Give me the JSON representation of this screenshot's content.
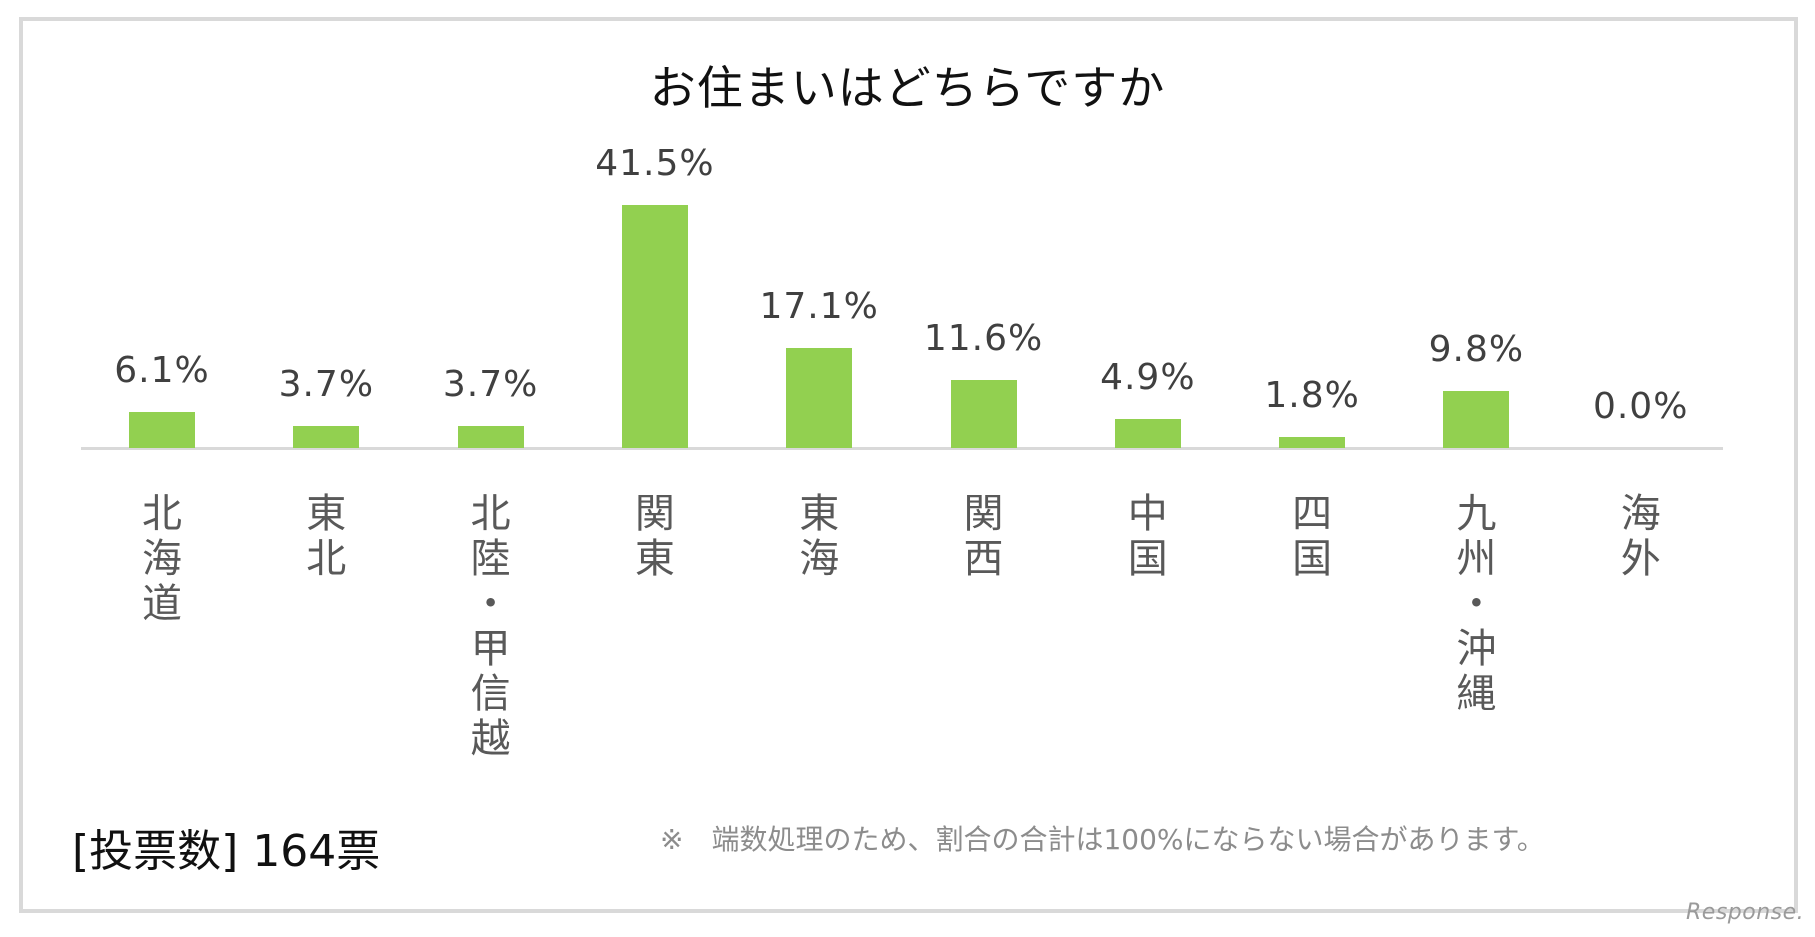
{
  "chart_data": {
    "type": "bar",
    "title": "お住まいはどちらですか",
    "categories": [
      "北海道",
      "東北",
      "北陸・甲信越",
      "関東",
      "東海",
      "関西",
      "中国",
      "四国",
      "九州・沖縄",
      "海外"
    ],
    "values": [
      6.1,
      3.7,
      3.7,
      41.5,
      17.1,
      11.6,
      4.9,
      1.8,
      9.8,
      0.0
    ],
    "value_labels": [
      "6.1%",
      "3.7%",
      "3.7%",
      "41.5%",
      "17.1%",
      "11.6%",
      "4.9%",
      "1.8%",
      "9.8%",
      "0.0%"
    ],
    "xlabel": "",
    "ylabel": "",
    "unit": "%",
    "grid": false,
    "legend": null,
    "bar_color": "#92d050",
    "annotations": [
      "[投票数]　164票",
      "※　端数処理のため、割合の合計は100%にならない場合があります。"
    ]
  },
  "title": "お住まいはどちらですか",
  "votes_label": "[投票数]  164票",
  "note": "※　端数処理のため、割合の合計は100%にならない場合があります。",
  "watermark": "Response."
}
